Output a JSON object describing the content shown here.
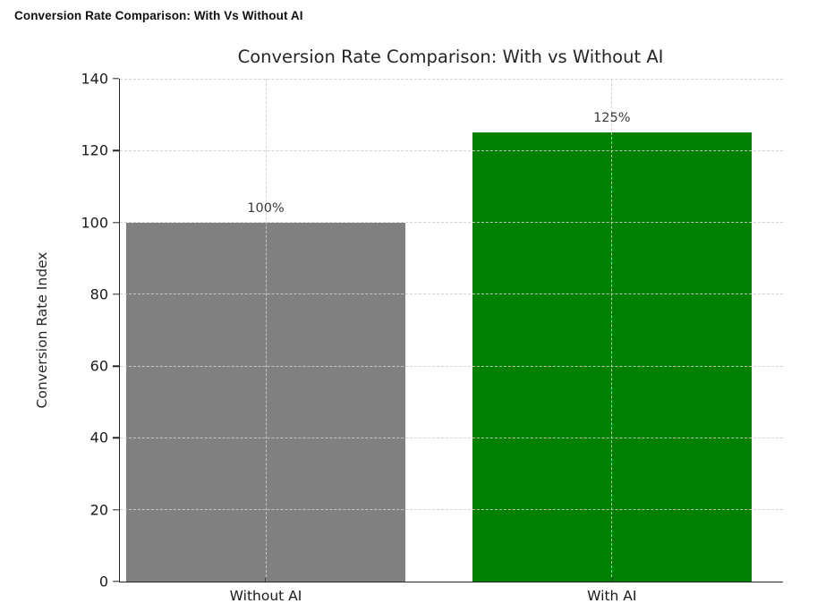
{
  "page_header": {
    "title": "Conversion Rate Comparison: With Vs Without AI"
  },
  "chart_data": {
    "type": "bar",
    "title": "Conversion Rate Comparison: With vs Without AI",
    "categories": [
      "Without AI",
      "With AI"
    ],
    "values": [
      100,
      125
    ],
    "bar_labels": [
      "100%",
      "125%"
    ],
    "bar_colors": [
      "#808080",
      "#008000"
    ],
    "xlabel": "",
    "ylabel": "Conversion Rate Index",
    "ylim": [
      0,
      140
    ],
    "yticks": [
      0,
      20,
      40,
      60,
      80,
      100,
      120,
      140
    ],
    "grid": "dashed horizontal at yticks, dashed vertical at bar centers, drawn over bars",
    "legend": "none",
    "background": "#ffffff"
  },
  "colors": {
    "bar_without_ai": "#808080",
    "bar_with_ai": "#008000",
    "grid": "#cdcdcd",
    "spine": "#262626",
    "title_text": "#262626",
    "tick_text": "#1a1a1a",
    "header_text": "#111111"
  }
}
